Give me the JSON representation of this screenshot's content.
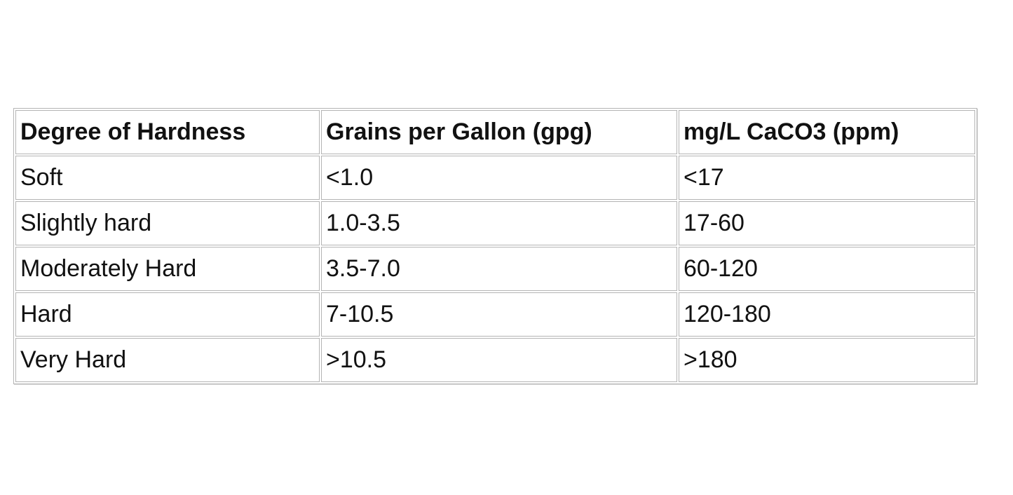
{
  "table": {
    "header": [
      "Degree of Hardness",
      "Grains per Gallon (gpg)",
      "mg/L CaCO3 (ppm)"
    ],
    "rows": [
      [
        "Soft",
        "<1.0",
        "<17"
      ],
      [
        "Slightly hard",
        "1.0-3.5",
        "17-60"
      ],
      [
        "Moderately Hard",
        "3.5-7.0",
        "60-120"
      ],
      [
        "Hard",
        "7-10.5",
        "120-180"
      ],
      [
        "Very Hard",
        ">10.5",
        ">180"
      ]
    ]
  }
}
